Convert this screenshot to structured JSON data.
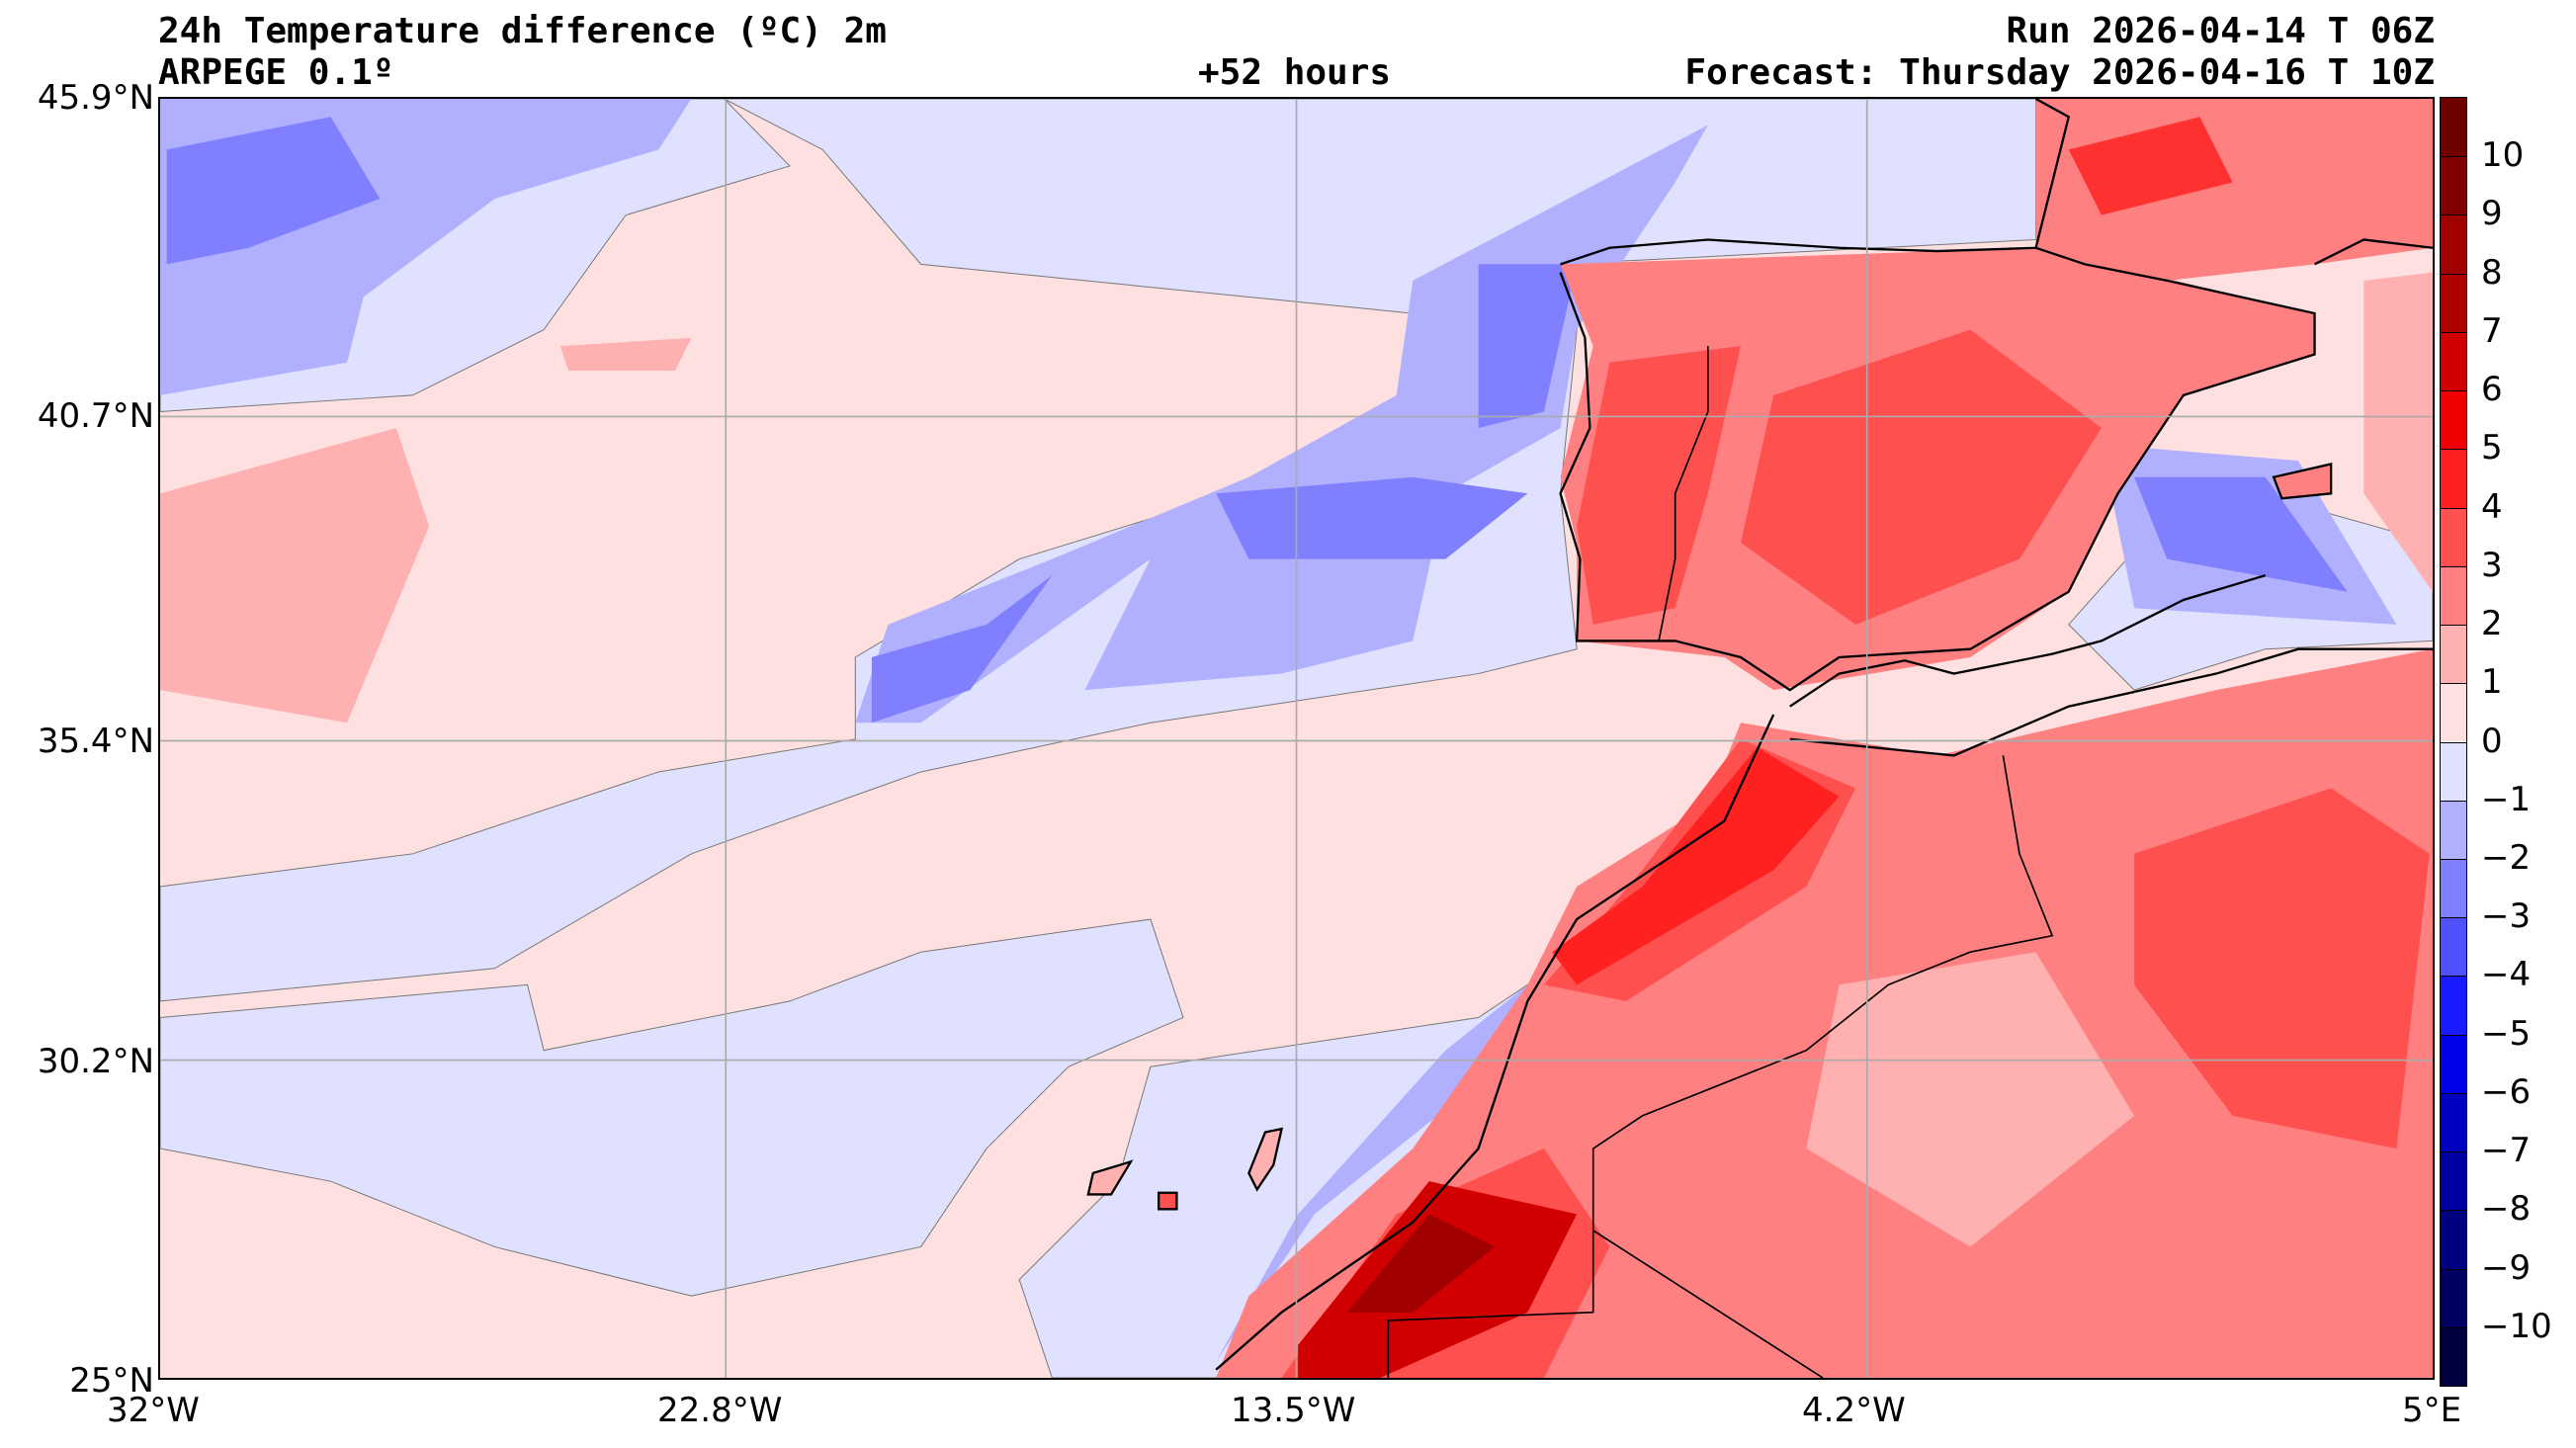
{
  "header": {
    "title": "24h Temperature difference (ºC) 2m",
    "model": "ARPEGE 0.1º",
    "lead_time": "+52 hours",
    "run": "Run 2026-04-14 T 06Z",
    "forecast": "Forecast: Thursday 2026-04-16 T 10Z"
  },
  "axes": {
    "lat_labels": [
      "45.9°N",
      "40.7°N",
      "35.4°N",
      "30.2°N",
      "25°N"
    ],
    "lon_labels": [
      "32°W",
      "22.8°W",
      "13.5°W",
      "4.2°W",
      "5°E"
    ]
  },
  "colorbar": {
    "tick_labels": [
      "10",
      "9",
      "8",
      "7",
      "6",
      "5",
      "4",
      "3",
      "2",
      "1",
      "0",
      "−1",
      "−2",
      "−3",
      "−4",
      "−5",
      "−6",
      "−7",
      "−8",
      "−9",
      "−10"
    ],
    "colors": [
      "#700000",
      "#800000",
      "#a00000",
      "#b00000",
      "#d00000",
      "#f00000",
      "#ff2020",
      "#ff5050",
      "#ff8080",
      "#ffb0b0",
      "#ffe0e0",
      "#e0e0ff",
      "#b0b0ff",
      "#8080ff",
      "#5050ff",
      "#1a1aff",
      "#0000e8",
      "#0000c0",
      "#0000a0",
      "#000080",
      "#000060",
      "#000040"
    ]
  }
}
